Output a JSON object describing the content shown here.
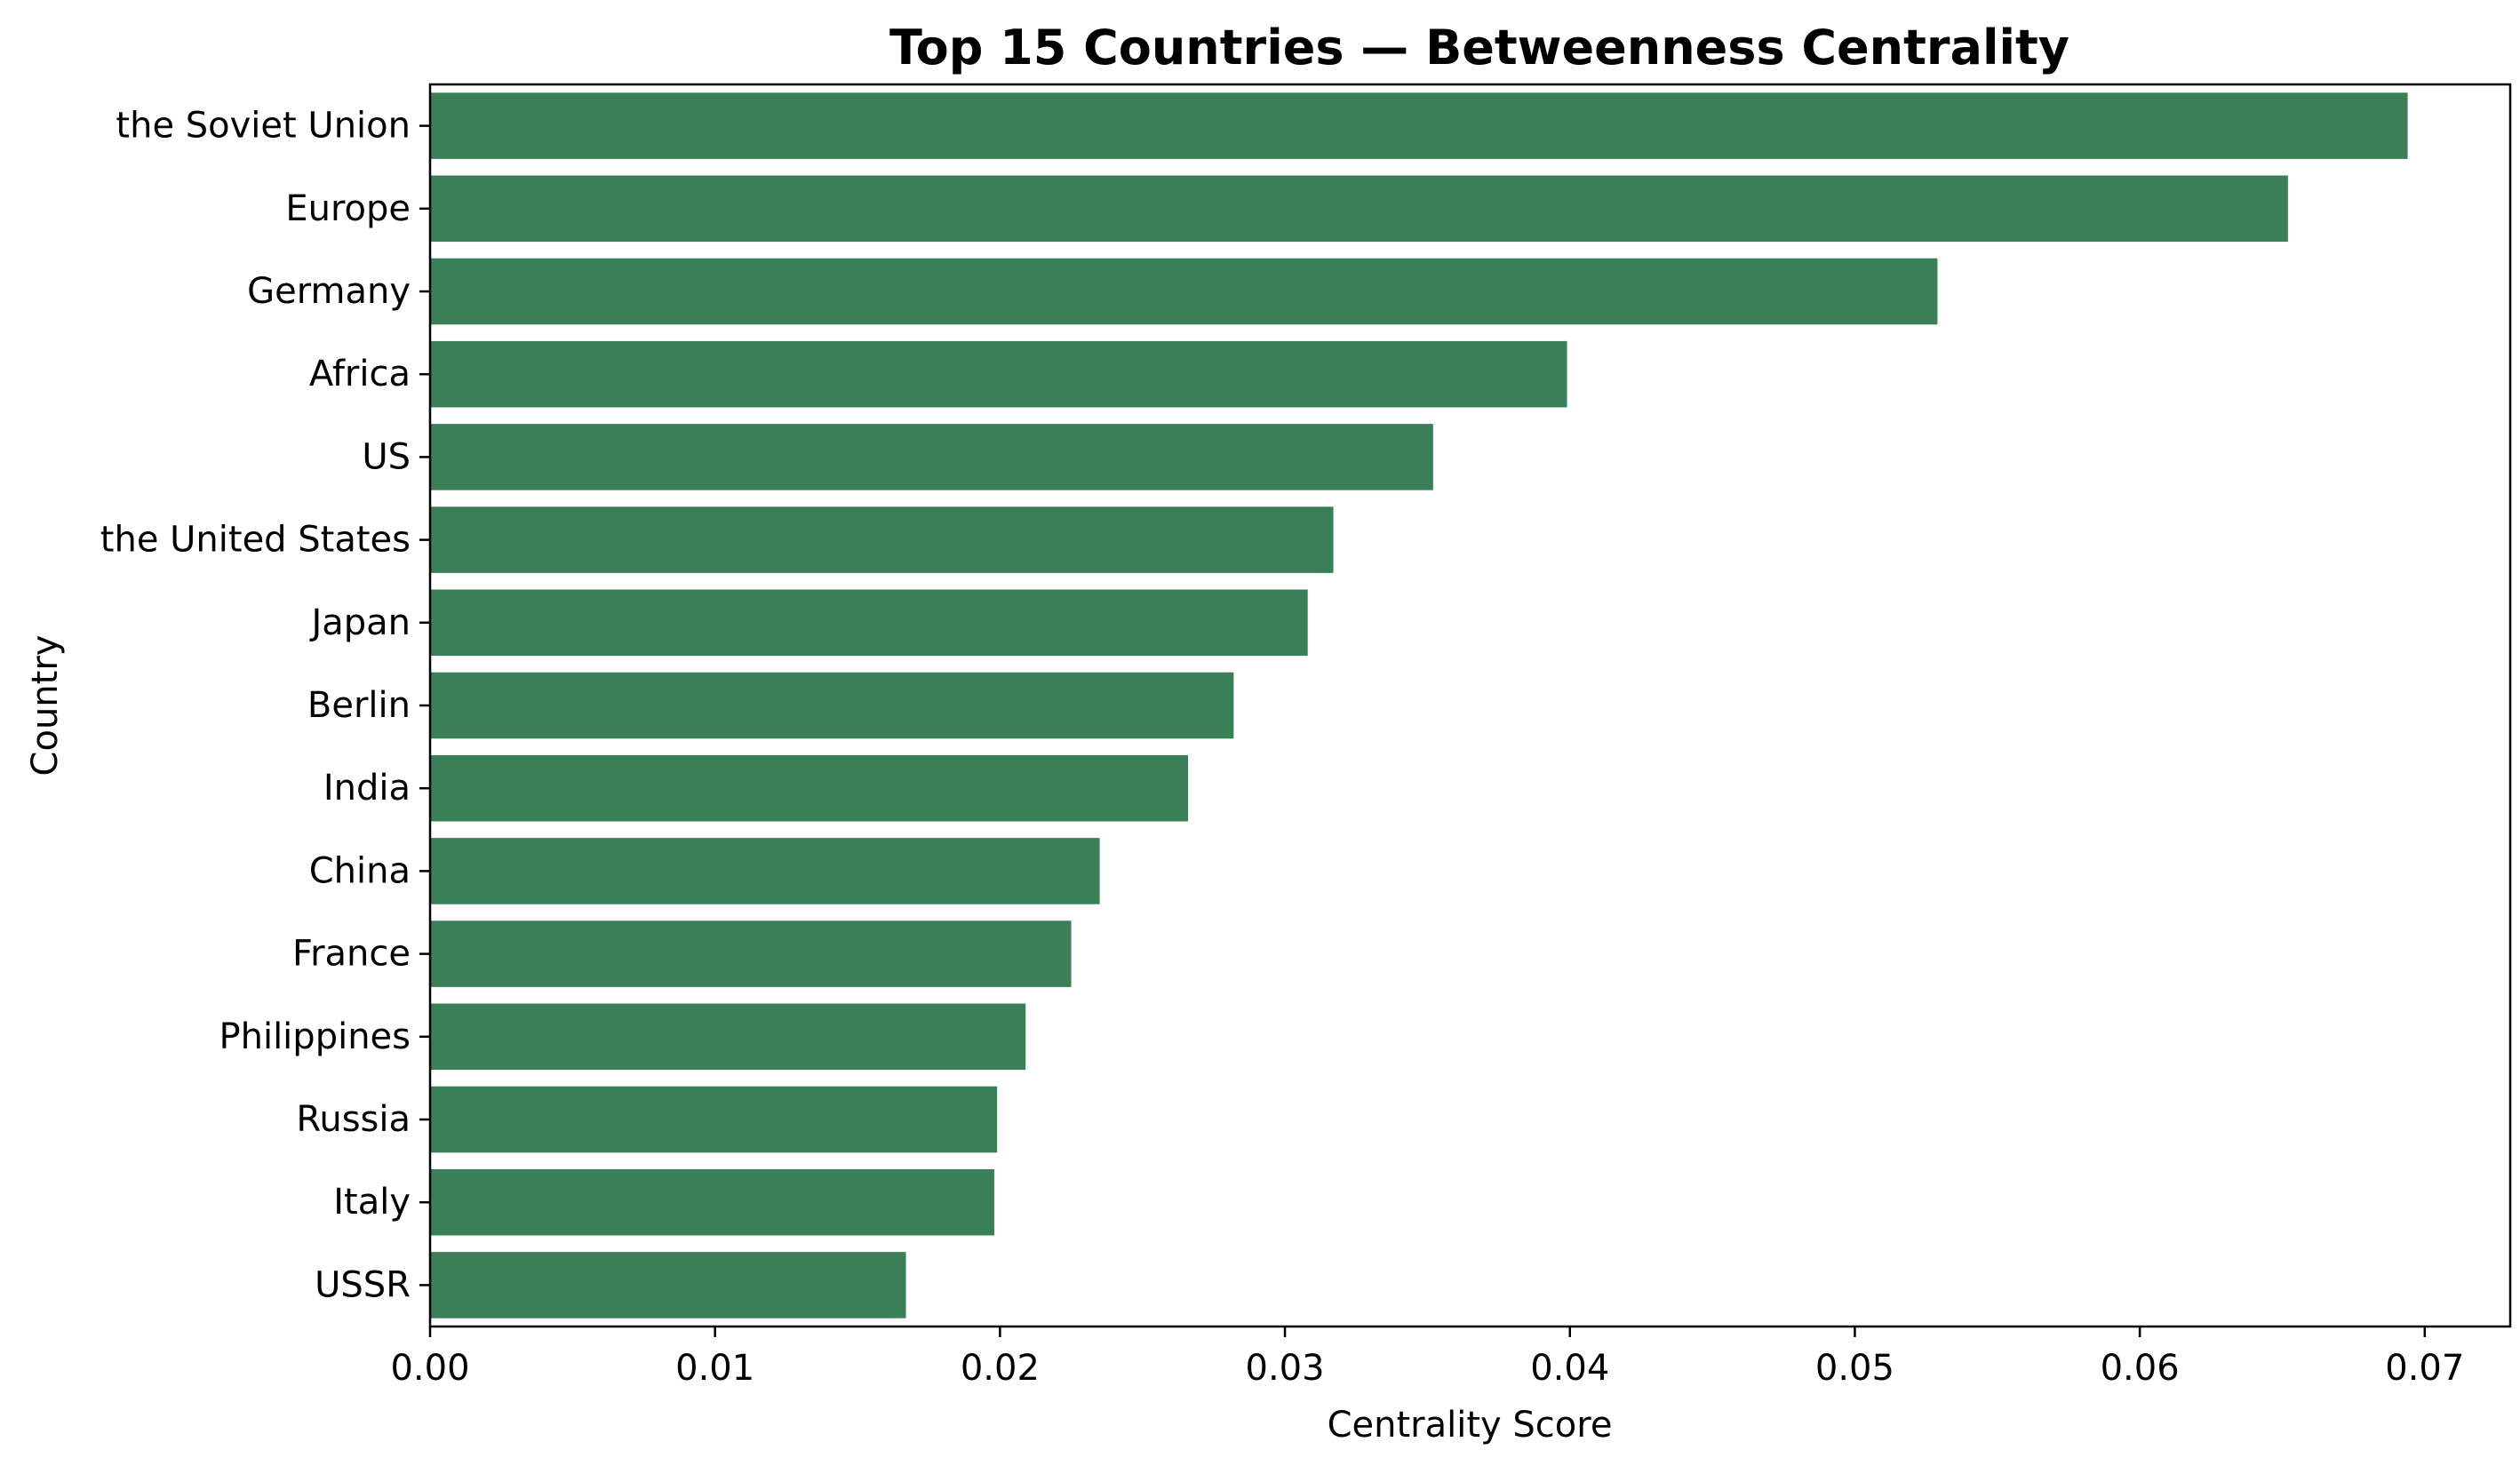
{
  "chart_data": {
    "type": "bar",
    "orientation": "horizontal",
    "title": "Top 15 Countries — Betweenness Centrality",
    "xlabel": "Centrality Score",
    "ylabel": "Country",
    "categories": [
      "the Soviet Union",
      "Europe",
      "Germany",
      "Africa",
      "US",
      "the United States",
      "Japan",
      "Berlin",
      "India",
      "China",
      "France",
      "Philippines",
      "Russia",
      "Italy",
      "USSR"
    ],
    "values": [
      0.0694,
      0.0652,
      0.0529,
      0.0399,
      0.0352,
      0.0317,
      0.0308,
      0.0282,
      0.0266,
      0.0235,
      0.0225,
      0.0209,
      0.0199,
      0.0198,
      0.0167
    ],
    "xlim": [
      0,
      0.073
    ],
    "xticks": [
      0.0,
      0.01,
      0.02,
      0.03,
      0.04,
      0.05,
      0.06,
      0.07
    ],
    "xtick_labels": [
      "0.00",
      "0.01",
      "0.02",
      "0.03",
      "0.04",
      "0.05",
      "0.06",
      "0.07"
    ],
    "bar_color": "#3a7f58",
    "grid": false,
    "legend": false
  }
}
